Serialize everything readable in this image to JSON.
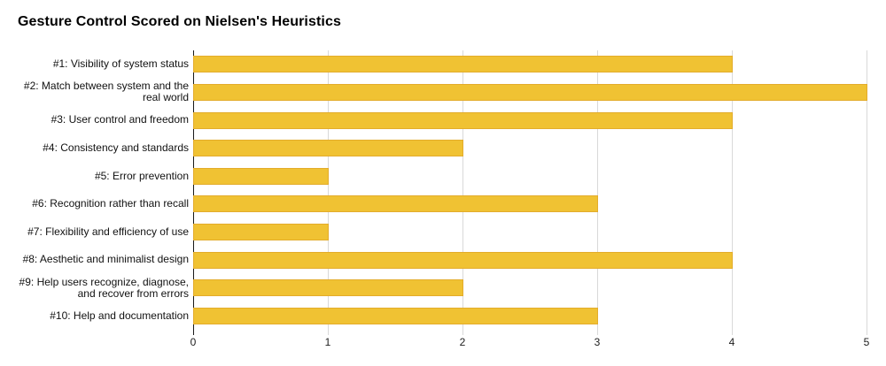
{
  "chart_data": {
    "type": "bar",
    "orientation": "horizontal",
    "title": "Gesture Control Scored on Nielsen's Heuristics",
    "categories": [
      "#1: Visibility of system status",
      "#2: Match between system and the real world",
      "#3: User control and freedom",
      "#4: Consistency and standards",
      "#5: Error prevention",
      "#6: Recognition rather than recall",
      "#7: Flexibility and efficiency of use",
      "#8: Aesthetic and minimalist design",
      "#9: Help users recognize, diagnose, and recover from errors",
      "#10: Help and documentation"
    ],
    "values": [
      4,
      5,
      4,
      2,
      1,
      3,
      1,
      4,
      2,
      3
    ],
    "xlabel": "",
    "ylabel": "",
    "xlim": [
      0,
      5
    ],
    "xticks": [
      0,
      1,
      2,
      3,
      4,
      5
    ],
    "grid": "vertical-gridlines-at-each-tick",
    "legend": "none",
    "colors": {
      "bar_fill": "#F0C233",
      "bar_border": "#E3AC2B",
      "gridline": "#D9D9D9",
      "baseline": "#1A1A1A",
      "title_text": "#000000",
      "label_text": "#111111",
      "tick_text": "#1C1C1C",
      "background": "#FFFFFF"
    }
  }
}
